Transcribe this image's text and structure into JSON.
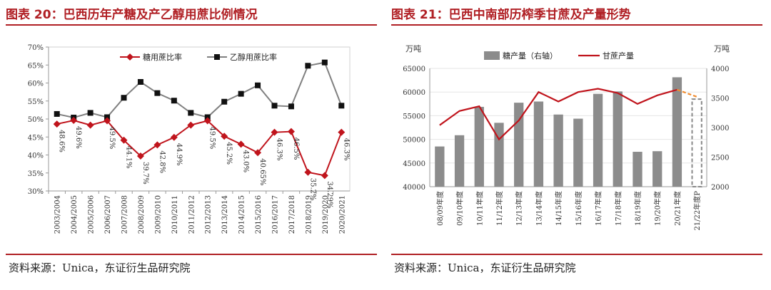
{
  "left_panel": {
    "title": "图表 20：巴西历年产糖及产乙醇用蔗比例情况",
    "source": "资料来源：Unica，东证衍生品研究院"
  },
  "right_panel": {
    "title": "图表 21：巴西中南部历榨季甘蔗及产量形势",
    "source": "资料来源：Unica，东证衍生品研究院"
  },
  "colors": {
    "title_red": "#b01f24",
    "sugar_line": "#c0141c",
    "ethanol_line": "#808080",
    "bar_gray": "#8c8c8c",
    "forecast_orange": "#f08a2c"
  },
  "chart_data": [
    {
      "type": "line",
      "categories": [
        "2003/2004",
        "2004/2005",
        "2005/2006",
        "2006/2007",
        "2007/2008",
        "2008/2009",
        "2009/2010",
        "2010/2011",
        "2011/2012",
        "2012/2013",
        "2013/2014",
        "2014/2015",
        "2015/2016",
        "2016/2017",
        "2017/2018",
        "2018/2019",
        "2019/2020",
        "2020/2021"
      ],
      "series": [
        {
          "name": "糖用蔗比率",
          "values": [
            48.6,
            49.6,
            48.3,
            49.5,
            44.1,
            39.7,
            42.8,
            44.9,
            48.3,
            49.5,
            45.2,
            43.0,
            40.65,
            46.3,
            46.5,
            35.2,
            34.29,
            46.3
          ],
          "labels": [
            "48.6%",
            "49.6%",
            "",
            "49.5%",
            "44.1%",
            "39.7%",
            "42.8%",
            "44.9%",
            "",
            "49.5%",
            "45.2%",
            "43.0%",
            "40.65%",
            "46.3%",
            "46.5%",
            "35.2%",
            "34.29%",
            "46.3%"
          ]
        },
        {
          "name": "乙醇用蔗比率",
          "values": [
            51.4,
            50.4,
            51.7,
            50.5,
            55.9,
            60.3,
            57.2,
            55.1,
            51.7,
            50.5,
            54.8,
            57.0,
            59.35,
            53.7,
            53.5,
            64.8,
            65.71,
            53.7
          ]
        }
      ],
      "ylim": [
        30,
        70
      ],
      "yticks": [
        "30%",
        "35%",
        "40%",
        "45%",
        "50%",
        "55%",
        "60%",
        "65%",
        "70%"
      ],
      "legend_position": "top-center"
    },
    {
      "type": "bar",
      "categories": [
        "08/09年度",
        "09/10年度",
        "10/11年度",
        "11/12年度",
        "12/13年度",
        "13/14年度",
        "14/15年度",
        "15/16年度",
        "16/17年度",
        "17/18年度",
        "18/19年度",
        "19/20年度",
        "20/21年度",
        "21/22年度P"
      ],
      "series": [
        {
          "name": "糖产量（右轴）",
          "axis": "right",
          "values": [
            2680,
            2870,
            3350,
            3080,
            3420,
            3440,
            3220,
            3150,
            3570,
            3610,
            2590,
            2600,
            3850,
            3480
          ],
          "forecast_index": 13
        },
        {
          "name": "甘蔗产量",
          "axis": "left",
          "type": "line",
          "values": [
            53000,
            56000,
            57000,
            50000,
            54000,
            60000,
            58000,
            60000,
            60700,
            59800,
            57500,
            59300,
            60500,
            59000
          ],
          "forecast_index": 13
        }
      ],
      "y_left": {
        "unit": "万吨",
        "ylim": [
          40000,
          65000
        ],
        "ticks": [
          "40000",
          "45000",
          "50000",
          "55000",
          "60000",
          "65000"
        ]
      },
      "y_right": {
        "unit": "万吨",
        "ylim": [
          2000,
          4000
        ],
        "ticks": [
          "2000",
          "2500",
          "3000",
          "3500",
          "4000"
        ]
      },
      "legend_position": "top-center"
    }
  ]
}
